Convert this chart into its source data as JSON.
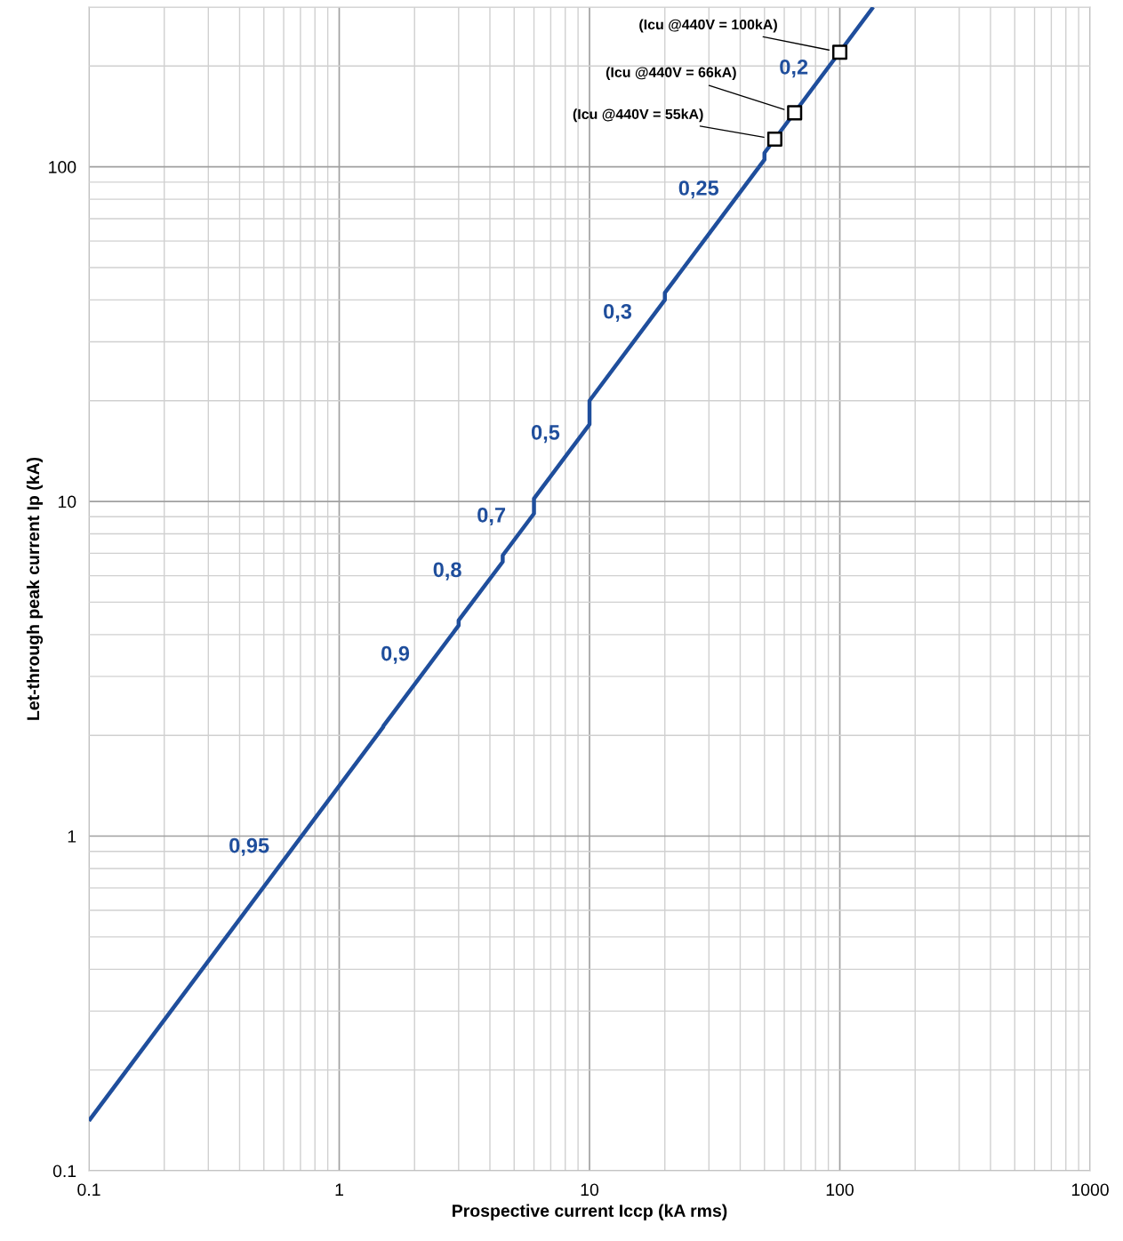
{
  "chart_data": {
    "type": "line",
    "xlabel": "Prospective current Iccp (kA rms)",
    "ylabel": "Let-through peak current Ip (kA)",
    "log": "xy",
    "xlim": [
      0.1,
      1000
    ],
    "ylim": [
      0.1,
      300
    ],
    "xticks": [
      0.1,
      1,
      10,
      100,
      1000
    ],
    "yticks": [
      0.1,
      1,
      10,
      100
    ],
    "grid": true,
    "series": [
      {
        "color": "#1f4e9c",
        "marker": "none",
        "line_style": "solid",
        "x": [
          0.1,
          1.5,
          1.5,
          3,
          3,
          4.5,
          4.5,
          6,
          6,
          10,
          10,
          20,
          20,
          50,
          50,
          136
        ],
        "values": [
          0.141,
          2.12,
          2.13,
          4.26,
          4.41,
          6.6,
          6.9,
          9.2,
          10.2,
          17,
          20,
          40,
          42,
          105,
          110,
          300
        ]
      },
      {
        "type": "scatter",
        "color": "#000000",
        "marker": "square",
        "x": [
          55,
          66,
          100
        ],
        "values": [
          121,
          145,
          220
        ]
      }
    ],
    "annotations": [
      "0,95",
      "0,9",
      "0,8",
      "0,7",
      "0,5",
      "0,3",
      "0,25",
      "0,2",
      "(Icu @440V = 100kA)",
      "(Icu @440V = 66kA)",
      "(Icu @440V = 55kA)"
    ]
  }
}
